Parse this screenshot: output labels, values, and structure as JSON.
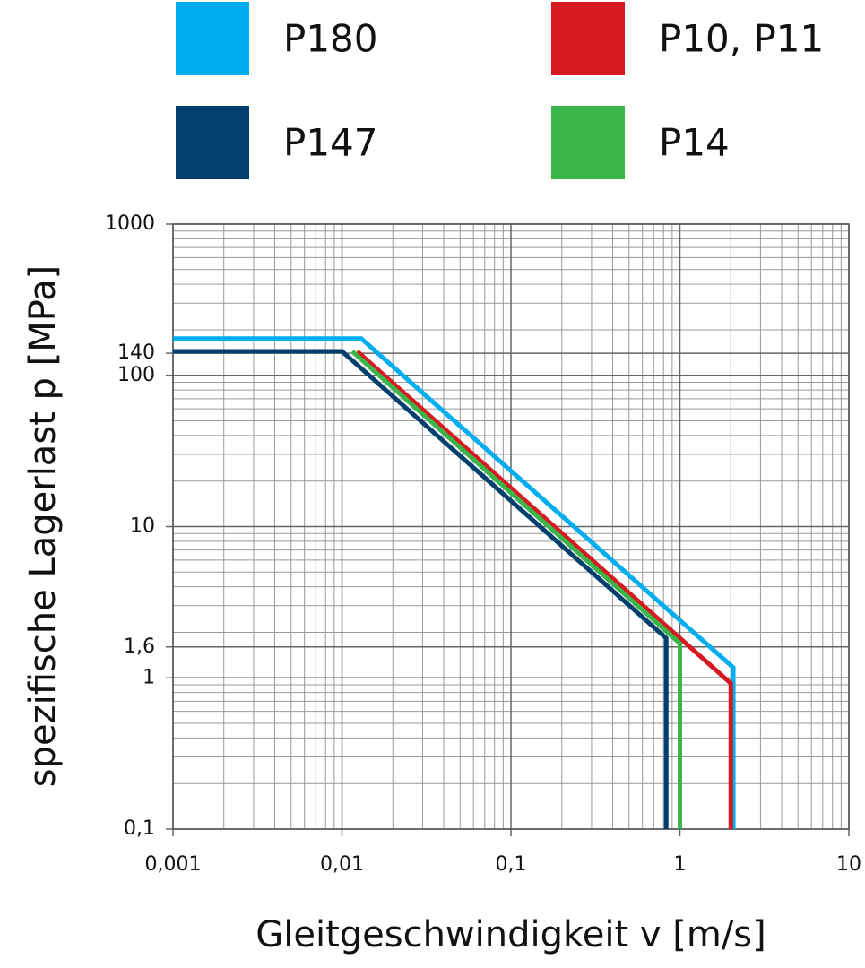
{
  "chart_data": {
    "type": "line",
    "x_label": "Gleitgeschwindigkeit v [m/s]",
    "y_label": "spezifische Lagerlast p [MPa]",
    "xscale": "log",
    "yscale": "log",
    "grid": true,
    "xlim": [
      0.001,
      10
    ],
    "ylim": [
      0.1,
      1000
    ],
    "xticks": [
      {
        "value": 0.001,
        "label": "0,001"
      },
      {
        "value": 0.01,
        "label": "0,01"
      },
      {
        "value": 0.1,
        "label": "0,1"
      },
      1,
      10
    ],
    "yticks": [
      {
        "value": 0.1,
        "label": "0,1"
      },
      1,
      {
        "value": 1.6,
        "label": "1,6"
      },
      10,
      100,
      140,
      1000
    ],
    "series": [
      {
        "name": "P180",
        "color": "#00aeef",
        "x": [
          0.001,
          0.013,
          2.07,
          2.07
        ],
        "values": [
          175,
          175,
          1.17,
          0.1
        ]
      },
      {
        "name": "P10, P11",
        "color": "#d71920",
        "x": [
          0.0123,
          2.0,
          2.0
        ],
        "values": [
          144,
          0.92,
          0.1
        ]
      },
      {
        "name": "P147",
        "color": "#003f6e",
        "x": [
          0.001,
          0.01,
          0.83,
          0.83
        ],
        "values": [
          144,
          144,
          1.83,
          0.1
        ]
      },
      {
        "name": "P14",
        "color": "#39b54a",
        "x": [
          0.0115,
          1.0,
          1.0
        ],
        "values": [
          144,
          1.69,
          0.1
        ]
      }
    ]
  }
}
